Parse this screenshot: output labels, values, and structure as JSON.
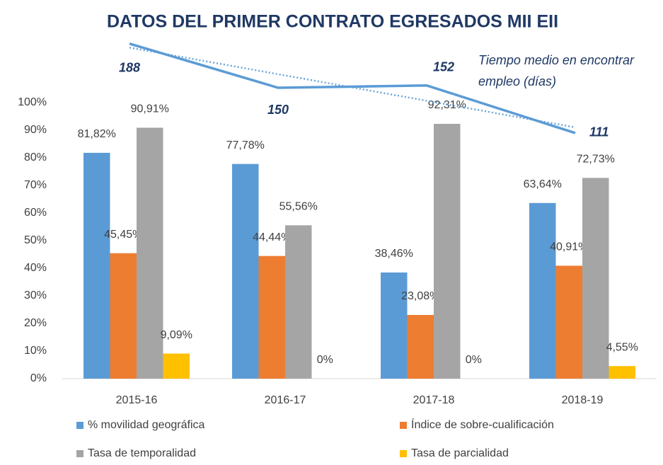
{
  "chart_data": {
    "type": "bar",
    "title": "DATOS DEL PRIMER CONTRATO EGRESADOS MII EII",
    "categories": [
      "2015-16",
      "2016-17",
      "2017-18",
      "2018-19"
    ],
    "series": [
      {
        "name": "% movilidad geográfica",
        "color": "#5b9bd5",
        "values": [
          81.82,
          77.78,
          38.46,
          63.64
        ],
        "value_labels": [
          "81,82%",
          "77,78%",
          "38,46%",
          "63,64%"
        ]
      },
      {
        "name": "Índice de sobre-cualificación",
        "color": "#ed7d31",
        "values": [
          45.45,
          44.44,
          23.08,
          40.91
        ],
        "value_labels": [
          "45,45%",
          "44,44%",
          "23,08%",
          "40,91%"
        ]
      },
      {
        "name": "Tasa de temporalidad",
        "color": "#a5a5a5",
        "values": [
          90.91,
          55.56,
          92.31,
          72.73
        ],
        "value_labels": [
          "90,91%",
          "55,56%",
          "92,31%",
          "72,73%"
        ]
      },
      {
        "name": "Tasa de parcialidad",
        "color": "#ffc000",
        "values": [
          9.09,
          0,
          0,
          4.55
        ],
        "value_labels": [
          "9,09%",
          "0%",
          "0%",
          "4,55%"
        ]
      },
      {
        "name": "Tiempo medio en encontrar empleo (días)",
        "type": "line",
        "axis": "y2",
        "color": "#5b9bd5",
        "values": [
          188,
          150,
          152,
          111
        ],
        "trendline": true
      }
    ],
    "ylim": [
      0,
      100
    ],
    "yticks": [
      {
        "value": 0,
        "label": "0%"
      },
      {
        "value": 10,
        "label": "10%"
      },
      {
        "value": 20,
        "label": "20%"
      },
      {
        "value": 30,
        "label": "30%"
      },
      {
        "value": 40,
        "label": "40%"
      },
      {
        "value": 50,
        "label": "50%"
      },
      {
        "value": 60,
        "label": "60%"
      },
      {
        "value": 70,
        "label": "70%"
      },
      {
        "value": 80,
        "label": "80%"
      },
      {
        "value": 90,
        "label": "90%"
      },
      {
        "value": 100,
        "label": "100%"
      }
    ],
    "y2lim": [
      100,
      200
    ],
    "grid": false,
    "legend": "bottom"
  }
}
